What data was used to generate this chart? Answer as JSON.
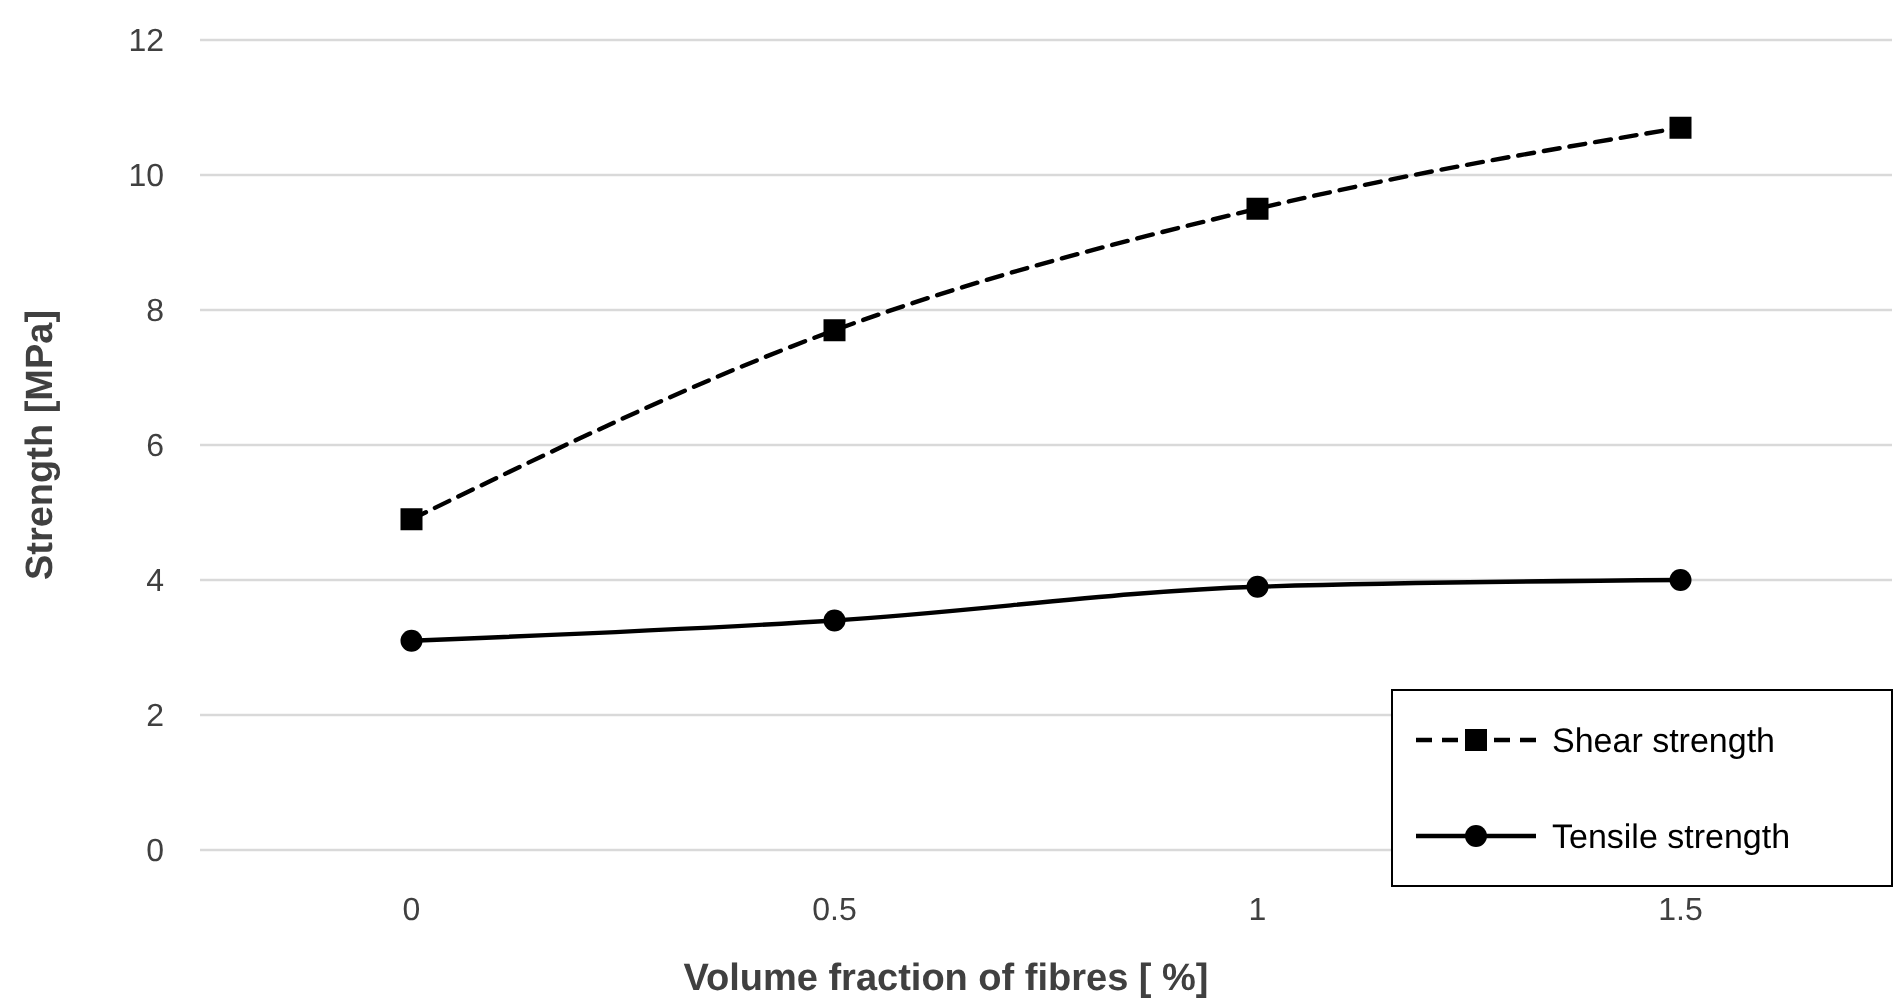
{
  "chart_data": {
    "type": "line",
    "xlabel": "Volume fraction of fibres [ %]",
    "ylabel": "Strength [MPa]",
    "categories": [
      "0",
      "0.5",
      "1",
      "1.5"
    ],
    "series": [
      {
        "name": "Shear strength",
        "color": "#000000",
        "values": [
          4.9,
          7.7,
          9.5,
          10.7
        ],
        "marker": "square",
        "line_style": "dashed"
      },
      {
        "name": "Tensile strength",
        "color": "#000000",
        "values": [
          3.1,
          3.4,
          3.9,
          4.0
        ],
        "marker": "circle",
        "line_style": "solid"
      }
    ],
    "ylim": [
      0,
      12
    ],
    "yticks": [
      0,
      2,
      4,
      6,
      8,
      10,
      12
    ],
    "grid": "y",
    "legend": "bottom right"
  }
}
